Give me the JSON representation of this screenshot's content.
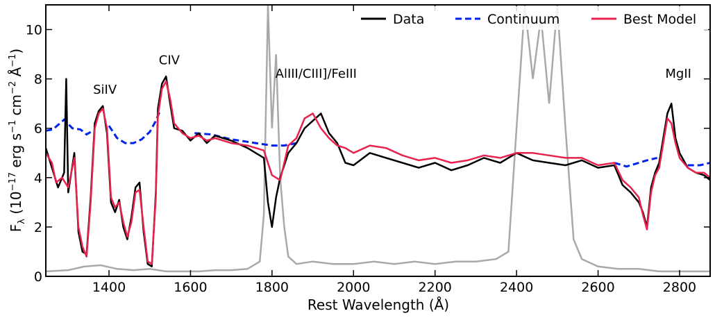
{
  "chart_data": {
    "type": "line",
    "xlabel": "Rest Wavelength (Å)",
    "ylabel": "F",
    "ylabel_sub": "λ",
    "ylabel_units": "(10",
    "ylabel_exp1": "−17",
    "ylabel_mid": "erg s",
    "ylabel_exp2": "−1",
    "ylabel_mid2": "cm",
    "ylabel_exp3": "−2",
    "ylabel_end": "Å",
    "ylabel_exp4": "−1",
    "ylabel_close": ")",
    "xlim": [
      1245,
      2875
    ],
    "ylim": [
      0,
      11
    ],
    "xticks": [
      1400,
      1600,
      1800,
      2000,
      2200,
      2400,
      2600,
      2800
    ],
    "xtick_labels": [
      "1400",
      "1600",
      "1800",
      "2000",
      "2200",
      "2400",
      "2600",
      "2800"
    ],
    "yticks": [
      0,
      2,
      4,
      6,
      8,
      10
    ],
    "ytick_labels": [
      "0",
      "2",
      "4",
      "6",
      "8",
      "10"
    ],
    "colors": {
      "data": "#000000",
      "error": "#a9a9a9",
      "continuum": "#0022ee",
      "model": "#e8224e"
    },
    "legend": [
      "Data",
      "Continuum",
      "Best Model"
    ],
    "line_labels": [
      {
        "text": "SiIV",
        "x": 1390,
        "y": 7.4
      },
      {
        "text": "CIV",
        "x": 1548,
        "y": 8.6
      },
      {
        "text": "AlIII/CIII]/FeIII",
        "x": 1908,
        "y": 8.05
      },
      {
        "text": "MgII",
        "x": 2797,
        "y": 8.05
      }
    ],
    "series": [
      {
        "name": "Continuum",
        "style": "dashed",
        "segments": [
          {
            "x": [
              1245,
              1262,
              1290,
              1310,
              1330,
              1345,
              1360
            ],
            "y": [
              5.9,
              5.95,
              6.35,
              6.0,
              5.95,
              5.75,
              5.9
            ]
          },
          {
            "x": [
              1400,
              1420,
              1440,
              1460,
              1480,
              1500,
              1515,
              1525
            ],
            "y": [
              6.1,
              5.6,
              5.4,
              5.4,
              5.55,
              5.85,
              6.3,
              6.7
            ]
          },
          {
            "x": [
              1610,
              1650,
              1700,
              1760,
              1800,
              1830,
              1860
            ],
            "y": [
              5.8,
              5.75,
              5.55,
              5.4,
              5.3,
              5.3,
              5.4
            ]
          },
          {
            "x": [
              2640,
              2670,
              2700,
              2720,
              2745
            ],
            "y": [
              4.6,
              4.45,
              4.6,
              4.7,
              4.8
            ]
          },
          {
            "x": [
              2820,
              2850,
              2875
            ],
            "y": [
              4.5,
              4.5,
              4.6
            ]
          }
        ]
      },
      {
        "name": "Best Model",
        "x": [
          1245,
          1260,
          1270,
          1285,
          1300,
          1315,
          1325,
          1335,
          1345,
          1355,
          1365,
          1375,
          1385,
          1395,
          1405,
          1415,
          1425,
          1435,
          1445,
          1455,
          1465,
          1475,
          1485,
          1495,
          1505,
          1515,
          1520,
          1530,
          1540,
          1550,
          1560,
          1580,
          1600,
          1620,
          1640,
          1660,
          1700,
          1740,
          1780,
          1800,
          1820,
          1840,
          1860,
          1880,
          1900,
          1920,
          1940,
          1960,
          1980,
          2000,
          2040,
          2080,
          2120,
          2160,
          2200,
          2240,
          2280,
          2320,
          2360,
          2400,
          2440,
          2480,
          2520,
          2560,
          2600,
          2640,
          2660,
          2680,
          2700,
          2710,
          2720,
          2730,
          2740,
          2750,
          2760,
          2770,
          2780,
          2790,
          2800,
          2810,
          2820,
          2840,
          2860,
          2875
        ],
        "y": [
          5.0,
          4.6,
          3.8,
          4.0,
          3.6,
          4.8,
          2.0,
          1.2,
          0.8,
          3.0,
          6.0,
          6.6,
          6.8,
          6.0,
          3.2,
          2.8,
          3.0,
          2.2,
          1.6,
          2.2,
          3.4,
          3.5,
          2.0,
          0.6,
          0.5,
          3.2,
          6.5,
          7.6,
          7.9,
          7.2,
          6.2,
          5.8,
          5.6,
          5.7,
          5.5,
          5.6,
          5.4,
          5.3,
          5.1,
          4.1,
          3.9,
          5.3,
          5.6,
          6.4,
          6.6,
          6.0,
          5.6,
          5.3,
          5.2,
          5.0,
          5.3,
          5.2,
          4.9,
          4.7,
          4.8,
          4.6,
          4.7,
          4.9,
          4.8,
          5.0,
          5.0,
          4.9,
          4.8,
          4.8,
          4.5,
          4.6,
          3.9,
          3.6,
          3.2,
          2.5,
          1.9,
          3.4,
          4.1,
          4.4,
          5.4,
          6.4,
          6.2,
          5.4,
          4.8,
          4.6,
          4.4,
          4.2,
          4.2,
          4.0
        ]
      },
      {
        "name": "Data",
        "x": [
          1245,
          1260,
          1275,
          1290,
          1295,
          1300,
          1315,
          1325,
          1335,
          1345,
          1355,
          1365,
          1375,
          1385,
          1395,
          1405,
          1415,
          1425,
          1435,
          1445,
          1455,
          1465,
          1475,
          1485,
          1495,
          1505,
          1515,
          1520,
          1530,
          1540,
          1550,
          1560,
          1580,
          1600,
          1620,
          1640,
          1660,
          1700,
          1740,
          1780,
          1790,
          1800,
          1810,
          1820,
          1840,
          1860,
          1880,
          1900,
          1920,
          1940,
          1960,
          1980,
          2000,
          2040,
          2080,
          2120,
          2160,
          2200,
          2240,
          2280,
          2320,
          2360,
          2400,
          2440,
          2480,
          2520,
          2560,
          2600,
          2640,
          2660,
          2680,
          2700,
          2710,
          2720,
          2730,
          2740,
          2750,
          2760,
          2770,
          2780,
          2790,
          2800,
          2810,
          2820,
          2840,
          2860,
          2875
        ],
        "y": [
          5.2,
          4.4,
          3.6,
          4.2,
          8.0,
          3.4,
          5.0,
          1.8,
          1.0,
          0.9,
          3.2,
          6.2,
          6.7,
          6.9,
          5.8,
          3.0,
          2.6,
          3.1,
          2.0,
          1.5,
          2.4,
          3.6,
          3.8,
          1.8,
          0.5,
          0.4,
          3.4,
          6.8,
          7.8,
          8.1,
          7.0,
          6.0,
          5.9,
          5.5,
          5.8,
          5.4,
          5.7,
          5.5,
          5.2,
          4.8,
          3.0,
          2.0,
          3.2,
          4.0,
          5.0,
          5.4,
          6.0,
          6.3,
          6.6,
          5.8,
          5.4,
          4.6,
          4.5,
          5.0,
          4.8,
          4.6,
          4.4,
          4.6,
          4.3,
          4.5,
          4.8,
          4.6,
          5.0,
          4.7,
          4.6,
          4.5,
          4.7,
          4.4,
          4.5,
          3.7,
          3.4,
          3.0,
          2.6,
          2.0,
          3.6,
          4.2,
          4.6,
          5.6,
          6.6,
          7.0,
          5.6,
          5.0,
          4.7,
          4.4,
          4.2,
          4.1,
          3.9
        ]
      },
      {
        "name": "Error",
        "x": [
          1245,
          1300,
          1340,
          1380,
          1420,
          1460,
          1500,
          1540,
          1580,
          1620,
          1660,
          1700,
          1740,
          1770,
          1780,
          1790,
          1800,
          1810,
          1820,
          1830,
          1840,
          1860,
          1900,
          1950,
          2000,
          2050,
          2100,
          2150,
          2200,
          2250,
          2300,
          2350,
          2380,
          2400,
          2420,
          2440,
          2460,
          2480,
          2500,
          2520,
          2540,
          2560,
          2600,
          2650,
          2700,
          2750,
          2800,
          2850,
          2875
        ],
        "y": [
          0.2,
          0.25,
          0.4,
          0.45,
          0.3,
          0.25,
          0.3,
          0.2,
          0.2,
          0.2,
          0.25,
          0.25,
          0.3,
          0.6,
          2.5,
          11.0,
          6.0,
          9.0,
          4.0,
          2.0,
          0.8,
          0.5,
          0.6,
          0.5,
          0.5,
          0.6,
          0.5,
          0.6,
          0.5,
          0.6,
          0.6,
          0.7,
          1.0,
          6.0,
          11.0,
          8.0,
          10.5,
          7.0,
          11.0,
          6.0,
          1.5,
          0.7,
          0.4,
          0.3,
          0.3,
          0.2,
          0.2,
          0.2,
          0.2
        ]
      }
    ]
  }
}
